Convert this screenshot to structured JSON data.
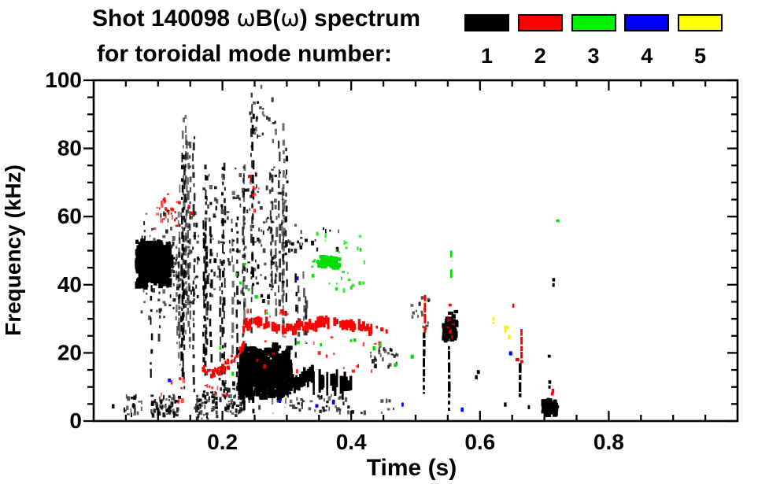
{
  "title": {
    "line1_parts": [
      {
        "text": "Shot 140098 ",
        "symbol": false
      },
      {
        "text": "ω",
        "symbol": true
      },
      {
        "text": "B(",
        "symbol": false
      },
      {
        "text": "ω",
        "symbol": true
      },
      {
        "text": ") spectrum",
        "symbol": false
      }
    ],
    "line1_plain": "Shot 140098 ωB(ω) spectrum",
    "line2": "for toroidal mode number:"
  },
  "legend": {
    "modes": [
      {
        "label": "1",
        "color": "#000000"
      },
      {
        "label": "2",
        "color": "#ff0000"
      },
      {
        "label": "3",
        "color": "#00ee00"
      },
      {
        "label": "4",
        "color": "#0000ff"
      },
      {
        "label": "5",
        "color": "#ffff00"
      }
    ]
  },
  "axes": {
    "x": {
      "label": "Time (s)",
      "tick_labels": [
        "0.2",
        "0.4",
        "0.6",
        "0.8"
      ]
    },
    "y": {
      "label": "Frequency (kHz)",
      "tick_labels": [
        "0",
        "20",
        "40",
        "60",
        "80",
        "100"
      ]
    }
  },
  "chart_data": {
    "type": "scatter",
    "title": "Shot 140098 ωB(ω) spectrum for toroidal mode number: 1 2 3 4 5",
    "xlabel": "Time (s)",
    "ylabel": "Frequency (kHz)",
    "xlim": [
      0,
      1.0
    ],
    "ylim": [
      0,
      100
    ],
    "x_major_ticks": [
      0.2,
      0.4,
      0.6,
      0.8
    ],
    "x_minor_step": 0.05,
    "y_major_ticks": [
      0,
      20,
      40,
      60,
      80,
      100
    ],
    "y_minor_step": 5,
    "grid": false,
    "legend_position": "top",
    "series": [
      {
        "name": "n=1",
        "mode": 1,
        "color": "#000000",
        "clusters": [
          {
            "style": "dots",
            "points": [
              [
                0.03,
                4.5
              ],
              [
                0.639,
                5
              ],
              [
                0.676,
                4.2
              ]
            ]
          },
          {
            "style": "specks",
            "t": [
              0.045,
              0.075
            ],
            "f": [
              2,
              8
            ],
            "n": 22
          },
          {
            "style": "specks",
            "t": [
              0.088,
              0.132
            ],
            "f": [
              2,
              8
            ],
            "n": 70
          },
          {
            "style": "specks",
            "t": [
              0.155,
              0.19
            ],
            "f": [
              1,
              9
            ],
            "n": 55
          },
          {
            "style": "blob",
            "t": [
              0.066,
              0.118
            ],
            "f": [
              40,
              53
            ],
            "n": 420
          },
          {
            "style": "specks",
            "t": [
              0.072,
              0.162
            ],
            "f": [
              30,
              62
            ],
            "n": 130
          },
          {
            "style": "vstreaks",
            "t": [
              0.088,
              0.16
            ],
            "fbase": [
              6,
              30
            ],
            "ftop": [
              45,
              88
            ],
            "cols": 11
          },
          {
            "style": "vstreaks",
            "t": [
              0.128,
              0.145
            ],
            "fbase": [
              20,
              40
            ],
            "ftop": [
              80,
              96
            ],
            "cols": 3
          },
          {
            "style": "vstreaks",
            "t": [
              0.168,
              0.235
            ],
            "fbase": [
              4,
              20
            ],
            "ftop": [
              40,
              78
            ],
            "cols": 12
          },
          {
            "style": "vstreaks",
            "t": [
              0.238,
              0.3
            ],
            "fbase": [
              20,
              40
            ],
            "ftop": [
              55,
              97
            ],
            "cols": 10
          },
          {
            "style": "specks",
            "t": [
              0.24,
              0.285
            ],
            "f": [
              82,
              99
            ],
            "n": 25
          },
          {
            "style": "specks",
            "t": [
              0.168,
              0.3
            ],
            "f": [
              35,
              75
            ],
            "n": 160
          },
          {
            "style": "specks",
            "t": [
              0.2,
              0.232
            ],
            "f": [
              2,
              12
            ],
            "n": 70
          },
          {
            "style": "blob",
            "t": [
              0.226,
              0.302
            ],
            "f": [
              7,
              22
            ],
            "n": 650
          },
          {
            "style": "vstreaks",
            "t": [
              0.23,
              0.3
            ],
            "fbase": [
              2,
              4
            ],
            "ftop": [
              6,
              9
            ],
            "cols": 8
          },
          {
            "style": "band",
            "path": [
              [
                0.3,
                12
              ],
              [
                0.32,
                11
              ],
              [
                0.34,
                12.5
              ],
              [
                0.36,
                10.5
              ],
              [
                0.375,
                12
              ],
              [
                0.39,
                10.8
              ],
              [
                0.4,
                11.5
              ]
            ],
            "halfwidth": 2.8,
            "step": 0.003
          },
          {
            "style": "specks",
            "t": [
              0.3,
              0.4
            ],
            "f": [
              3,
              8
            ],
            "n": 45
          },
          {
            "style": "vstreaks",
            "t": [
              0.305,
              0.34
            ],
            "fbase": [
              18,
              24
            ],
            "ftop": [
              30,
              44
            ],
            "cols": 5
          },
          {
            "style": "specks",
            "t": [
              0.295,
              0.38
            ],
            "f": [
              50,
              58
            ],
            "n": 22
          },
          {
            "style": "specks",
            "t": [
              0.425,
              0.472
            ],
            "f": [
              16,
              22
            ],
            "n": 26
          },
          {
            "style": "vdash",
            "t": 0.513,
            "f": [
              8,
              26
            ]
          },
          {
            "style": "specks",
            "t": [
              0.508,
              0.52
            ],
            "f": [
              27,
              40
            ],
            "n": 10
          },
          {
            "style": "blob",
            "t": [
              0.543,
              0.562
            ],
            "f": [
              23,
              32
            ],
            "n": 55
          },
          {
            "style": "vdash",
            "t": 0.552,
            "f": [
              3,
              22
            ]
          },
          {
            "style": "dots",
            "points": [
              [
                0.594,
                13
              ],
              [
                0.597,
                14.5
              ],
              [
                0.658,
                18
              ]
            ]
          },
          {
            "style": "vdash",
            "t": 0.662,
            "f": [
              7,
              17
            ]
          },
          {
            "style": "dots",
            "points": [
              [
                0.714,
                40
              ],
              [
                0.714,
                41.5
              ],
              [
                0.707,
                19
              ],
              [
                0.708,
                10
              ],
              [
                0.708,
                11.5
              ]
            ]
          },
          {
            "style": "blob",
            "t": [
              0.697,
              0.717
            ],
            "f": [
              2,
              6.5
            ],
            "n": 60
          },
          {
            "style": "specks",
            "t": [
              0.488,
              0.515
            ],
            "f": [
              31,
              35
            ],
            "n": 7
          },
          {
            "style": "specks",
            "t": [
              0.41,
              0.47
            ],
            "f": [
              2,
              7
            ],
            "n": 8
          }
        ]
      },
      {
        "name": "n=2",
        "mode": 2,
        "color": "#ff0000",
        "clusters": [
          {
            "style": "specks",
            "t": [
              0.092,
              0.132
            ],
            "f": [
              55,
              67
            ],
            "n": 26
          },
          {
            "style": "dots",
            "points": [
              [
                0.148,
                63
              ],
              [
                0.152,
                61
              ]
            ]
          },
          {
            "style": "specks",
            "t": [
              0.1,
              0.142
            ],
            "f": [
              6,
              13
            ],
            "n": 8
          },
          {
            "style": "specks",
            "t": [
              0.238,
              0.258
            ],
            "f": [
              62,
              74
            ],
            "n": 9
          },
          {
            "style": "arc",
            "path": [
              [
                0.167,
                15.5
              ],
              [
                0.183,
                13.6
              ],
              [
                0.2,
                15.5
              ],
              [
                0.218,
                18.5
              ],
              [
                0.233,
                22
              ]
            ],
            "n": 60,
            "jitter": 1.2
          },
          {
            "style": "specks",
            "t": [
              0.172,
              0.205
            ],
            "f": [
              8,
              13
            ],
            "n": 7
          },
          {
            "style": "band",
            "path": [
              [
                0.233,
                27.5
              ],
              [
                0.245,
                29.5
              ],
              [
                0.26,
                29
              ],
              [
                0.275,
                27.8
              ],
              [
                0.29,
                26.6
              ],
              [
                0.305,
                27
              ],
              [
                0.32,
                27.8
              ],
              [
                0.34,
                28.3
              ],
              [
                0.36,
                29.2
              ],
              [
                0.38,
                29.1
              ],
              [
                0.4,
                28.2
              ],
              [
                0.418,
                27.4
              ],
              [
                0.432,
                27
              ]
            ],
            "halfwidth": 1.4,
            "step": 0.0032
          },
          {
            "style": "specks",
            "t": [
              0.235,
              0.3
            ],
            "f": [
              30,
              33
            ],
            "n": 8
          },
          {
            "style": "specks",
            "t": [
              0.24,
              0.445
            ],
            "f": [
              15,
              25
            ],
            "n": 20
          },
          {
            "style": "dots",
            "points": [
              [
                0.44,
                27.5
              ],
              [
                0.447,
                27
              ],
              [
                0.455,
                26.5
              ]
            ]
          },
          {
            "style": "vdash",
            "t": 0.5145,
            "f": [
              26,
              37
            ]
          },
          {
            "style": "specks",
            "t": [
              0.545,
              0.558
            ],
            "f": [
              25,
              32
            ],
            "n": 10
          },
          {
            "style": "dots",
            "points": [
              [
                0.553,
                34
              ],
              [
                0.652,
                34
              ],
              [
                0.657,
                18
              ],
              [
                0.712,
                8
              ],
              [
                0.713,
                9
              ]
            ]
          },
          {
            "style": "vdash",
            "t": 0.6645,
            "f": [
              17,
              27
            ]
          }
        ]
      },
      {
        "name": "n=3",
        "mode": 3,
        "color": "#00dd00",
        "clusters": [
          {
            "style": "dots",
            "points": [
              [
                0.197,
                21.5
              ],
              [
                0.216,
                14
              ],
              [
                0.222,
                43
              ],
              [
                0.228,
                40.5
              ],
              [
                0.234,
                46
              ],
              [
                0.241,
                38.5
              ],
              [
                0.252,
                36.5
              ],
              [
                0.268,
                31.6
              ],
              [
                0.317,
                23
              ],
              [
                0.353,
                22.4
              ],
              [
                0.4,
                23.5
              ],
              [
                0.405,
                23.8
              ],
              [
                0.435,
                21.5
              ],
              [
                0.445,
                22.5
              ],
              [
                0.468,
                16.5
              ],
              [
                0.494,
                19
              ],
              [
                0.72,
                58.7
              ]
            ]
          },
          {
            "style": "specks",
            "t": [
              0.337,
              0.42
            ],
            "f": [
              39,
              56
            ],
            "n": 30
          },
          {
            "style": "blob",
            "t": [
              0.347,
              0.378
            ],
            "f": [
              45.5,
              48.5
            ],
            "n": 40
          },
          {
            "style": "vdash",
            "t": 0.5555,
            "f": [
              47,
              50
            ]
          },
          {
            "style": "vdash",
            "t": 0.5555,
            "f": [
              42,
              44.5
            ]
          }
        ]
      },
      {
        "name": "n=4",
        "mode": 4,
        "color": "#0000ff",
        "clusters": [
          {
            "style": "dots",
            "points": [
              [
                0.117,
                12
              ],
              [
                0.289,
                5.8
              ],
              [
                0.317,
                42
              ],
              [
                0.346,
                4.5
              ],
              [
                0.372,
                5.5
              ],
              [
                0.48,
                5
              ],
              [
                0.572,
                3.5
              ],
              [
                0.647,
                20
              ]
            ]
          }
        ]
      },
      {
        "name": "n=5",
        "mode": 5,
        "color": "#ffee00",
        "clusters": [
          {
            "style": "vdash",
            "t": 0.621,
            "f": [
              28.5,
              30.5
            ]
          },
          {
            "style": "vdash",
            "t": 0.6395,
            "f": [
              25.5,
              28
            ]
          },
          {
            "style": "dots",
            "points": [
              [
                0.645,
                24.8
              ],
              [
                0.643,
                27.5
              ]
            ]
          }
        ]
      }
    ]
  }
}
